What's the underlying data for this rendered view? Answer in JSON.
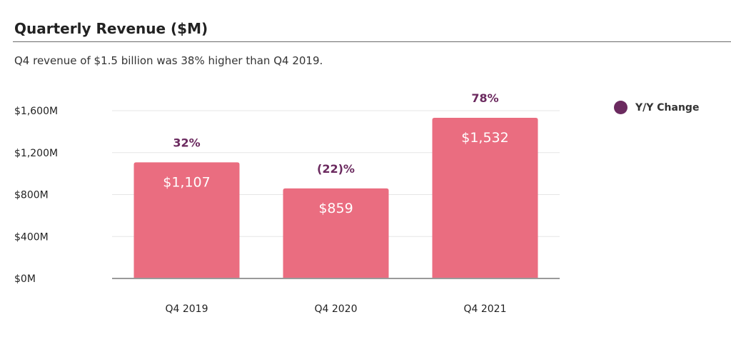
{
  "title": "Quarterly Revenue ($M)",
  "subtitle": "Q4 revenue of $1.5 billion was 38% higher than Q4 2019.",
  "colors": {
    "bar": "#ea6d80",
    "annotation": "#6b2a5f",
    "grid": "#e6e6e6",
    "axis": "#9a9a9a",
    "bar_label": "#ffffff"
  },
  "legend": {
    "label": "Y/Y Change",
    "color": "#6b2a5f"
  },
  "chart_data": {
    "type": "bar",
    "categories": [
      "Q4 2019",
      "Q4 2020",
      "Q4 2021"
    ],
    "values": [
      1107,
      859,
      1532
    ],
    "value_labels": [
      "$1,107",
      "$859",
      "$1,532"
    ],
    "annotations": [
      "32%",
      "(22)%",
      "78%"
    ],
    "annotation_series": "Y/Y Change",
    "title": "Quarterly Revenue ($M)",
    "xlabel": "",
    "ylabel": "",
    "ylim": [
      0,
      1600
    ],
    "yticks": [
      0,
      400,
      800,
      1200,
      1600
    ],
    "ytick_labels": [
      "$0M",
      "$400M",
      "$800M",
      "$1,200M",
      "$1,600M"
    ],
    "grid": true,
    "legend_position": "top-right"
  }
}
